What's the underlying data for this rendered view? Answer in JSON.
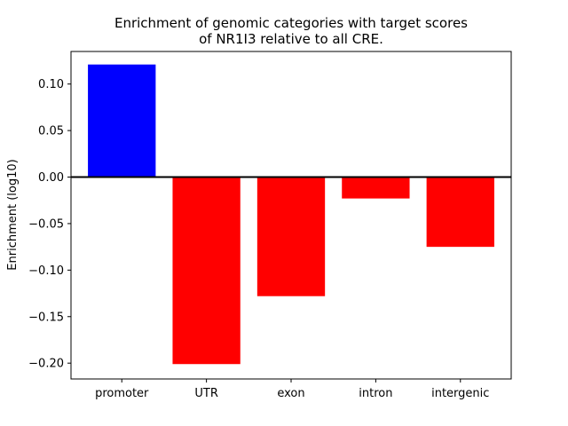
{
  "chart_data": {
    "type": "bar",
    "title_lines": [
      "Enrichment of genomic categories with target scores",
      "of NR1I3 relative to all CRE."
    ],
    "xlabel": "",
    "ylabel": "Enrichment (log10)",
    "categories": [
      "promoter",
      "UTR",
      "exon",
      "intron",
      "intergenic"
    ],
    "values": [
      0.121,
      -0.201,
      -0.128,
      -0.023,
      -0.075
    ],
    "ylim": [
      -0.217,
      0.135
    ],
    "yticks": [
      0.1,
      0.05,
      0.0,
      -0.05,
      -0.1,
      -0.15,
      -0.2
    ],
    "ytick_labels": [
      "0.10",
      "0.05",
      "0.00",
      "−0.05",
      "−0.10",
      "−0.15",
      "−0.20"
    ],
    "colors": {
      "positive": "#0000ff",
      "negative": "#ff0000",
      "zero_line": "#000000"
    },
    "grid": false,
    "legend": "none"
  }
}
